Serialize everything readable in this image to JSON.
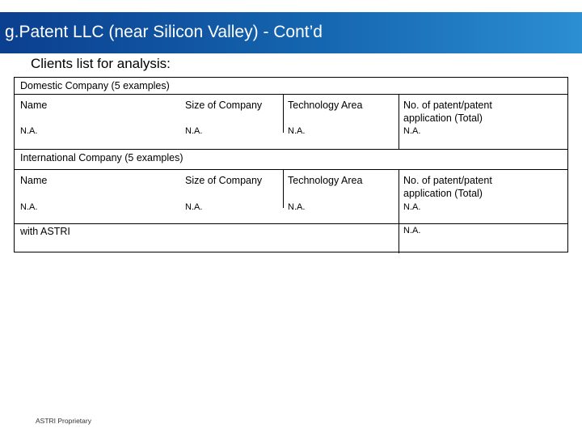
{
  "slide": {
    "title": "g.Patent LLC (near Silicon Valley) - Cont’d",
    "subtitle": "Clients list for analysis:"
  },
  "table": {
    "domestic": {
      "label": "Domestic Company (5 examples)",
      "headers": [
        "Name",
        "Size of Company",
        "Technology Area",
        "No. of patent/patent application (Total)"
      ],
      "row": [
        "N.A.",
        "N.A.",
        "N.A.",
        "N.A."
      ]
    },
    "international": {
      "label": "International  Company (5 examples)",
      "headers": [
        "Name",
        "Size of Company",
        "Technology Area",
        "No. of patent/patent application (Total)"
      ],
      "row": [
        "N.A.",
        "N.A.",
        "N.A.",
        "N.A."
      ]
    },
    "astri": {
      "label": "with ASTRI",
      "value": "N.A."
    }
  },
  "footer": {
    "text": "ASTRI Proprietary"
  }
}
